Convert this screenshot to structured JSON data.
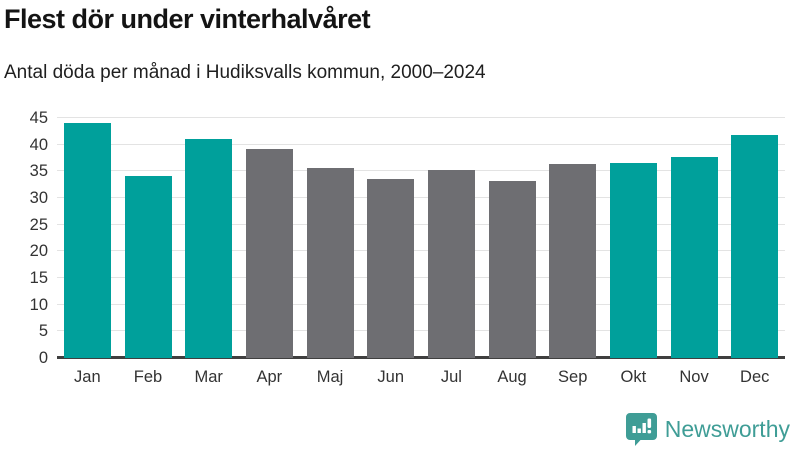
{
  "header": {
    "title": "Flest dör under vinterhalvåret",
    "subtitle": "Antal döda per månad i Hudiksvalls kommun, 2000–2024"
  },
  "chart_data": {
    "type": "bar",
    "title": "Flest dör under vinterhalvåret",
    "subtitle": "Antal döda per månad i Hudiksvalls kommun, 2000–2024",
    "categories": [
      "Jan",
      "Feb",
      "Mar",
      "Apr",
      "Maj",
      "Jun",
      "Jul",
      "Aug",
      "Sep",
      "Okt",
      "Nov",
      "Dec"
    ],
    "values": [
      44.0,
      34.1,
      41.0,
      39.2,
      35.6,
      33.6,
      35.3,
      33.2,
      36.3,
      36.5,
      37.7,
      41.8
    ],
    "highlighted_winter_months": [
      true,
      true,
      true,
      false,
      false,
      false,
      false,
      false,
      false,
      true,
      true,
      true
    ],
    "xlabel": "",
    "ylabel": "",
    "ylim": [
      0,
      45
    ],
    "yticks": [
      0,
      5,
      10,
      15,
      20,
      25,
      30,
      35,
      40,
      45
    ],
    "grid": true,
    "legend_position": "none",
    "colors": {
      "winter_bar": "#00a09b",
      "summer_bar": "#6e6e72",
      "axis_line": "#3f3f3f",
      "gridline": "#e3e3e3",
      "tick_text": "#333333"
    }
  },
  "footer": {
    "brand": "Newsworthy",
    "brand_color": "#3f9d96",
    "brand_icon": "newsworthy-speech-bubble-barchart-icon"
  }
}
